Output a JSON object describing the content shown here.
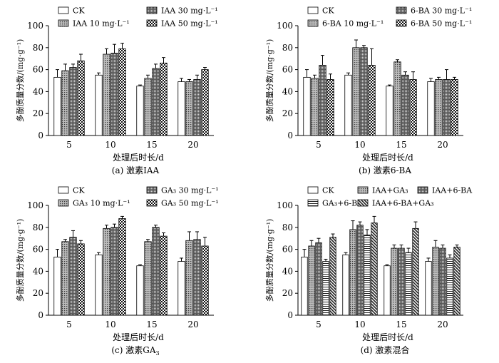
{
  "chart_data": [
    {
      "type": "bar",
      "caption": "(a) 激素IAA",
      "xlabel": "处理后时长/d",
      "ylabel": "多酚质量分数/(mg·g⁻¹)",
      "ylim": [
        0,
        100
      ],
      "yticks": [
        "0",
        "20",
        "40",
        "60",
        "80",
        "100"
      ],
      "categories": [
        "5",
        "10",
        "15",
        "20"
      ],
      "legend_position": "top",
      "series": [
        {
          "name": "CK",
          "pattern": "white",
          "values": [
            53,
            55,
            45,
            49
          ],
          "errors": [
            7,
            2,
            1,
            3
          ]
        },
        {
          "name": "IAA 10 mg·L⁻¹",
          "pattern": "dots",
          "values": [
            59,
            74,
            52,
            49
          ],
          "errors": [
            6,
            5,
            3,
            2
          ]
        },
        {
          "name": "IAA 30 mg·L⁻¹",
          "pattern": "dense",
          "values": [
            62,
            75,
            61,
            51
          ],
          "errors": [
            3,
            8,
            4,
            4
          ]
        },
        {
          "name": "IAA 50 mg·L⁻¹",
          "pattern": "checker",
          "values": [
            68,
            79,
            66,
            60
          ],
          "errors": [
            6,
            5,
            5,
            2
          ]
        }
      ]
    },
    {
      "type": "bar",
      "caption": "(b) 激素6-BA",
      "xlabel": "处理后时长/d",
      "ylabel": "多酚质量分数/(mg·g⁻¹)",
      "ylim": [
        0,
        100
      ],
      "yticks": [
        "0",
        "20",
        "40",
        "60",
        "80",
        "100"
      ],
      "categories": [
        "5",
        "10",
        "15",
        "20"
      ],
      "legend_position": "top",
      "series": [
        {
          "name": "CK",
          "pattern": "white",
          "values": [
            53,
            55,
            45,
            49
          ],
          "errors": [
            7,
            2,
            1,
            3
          ]
        },
        {
          "name": "6-BA 10 mg·L⁻¹",
          "pattern": "dots",
          "values": [
            52,
            80,
            67,
            51
          ],
          "errors": [
            3,
            7,
            2,
            2
          ]
        },
        {
          "name": "6-BA 30 mg·L⁻¹",
          "pattern": "dense",
          "values": [
            64,
            80,
            55,
            51
          ],
          "errors": [
            9,
            2,
            3,
            9
          ]
        },
        {
          "name": "6-BA 50 mg·L⁻¹",
          "pattern": "checker",
          "values": [
            51,
            64,
            51,
            51
          ],
          "errors": [
            5,
            15,
            7,
            2
          ]
        }
      ]
    },
    {
      "type": "bar",
      "caption": "(c) 激素GA",
      "caption_sub": "3",
      "xlabel": "处理后时长/d",
      "ylabel": "多酚质量分数/(mg·g⁻¹)",
      "ylim": [
        0,
        100
      ],
      "yticks": [
        "0",
        "20",
        "40",
        "60",
        "80",
        "100"
      ],
      "categories": [
        "5",
        "10",
        "15",
        "20"
      ],
      "legend_position": "top",
      "series": [
        {
          "name": "CK",
          "pattern": "white",
          "values": [
            53,
            55,
            45,
            49
          ],
          "errors": [
            7,
            2,
            1,
            3
          ]
        },
        {
          "name": "GA₃ 10 mg·L⁻¹",
          "pattern": "dots",
          "values": [
            67,
            79,
            67,
            68
          ],
          "errors": [
            2,
            3,
            2,
            8
          ]
        },
        {
          "name": "GA₃ 30 mg·L⁻¹",
          "pattern": "dense",
          "values": [
            71,
            80,
            80,
            69
          ],
          "errors": [
            6,
            3,
            2,
            7
          ]
        },
        {
          "name": "GA₃ 50 mg·L⁻¹",
          "pattern": "checker",
          "values": [
            65,
            88,
            72,
            63
          ],
          "errors": [
            3,
            2,
            3,
            8
          ]
        }
      ]
    },
    {
      "type": "bar",
      "caption": "(d) 激素混合",
      "xlabel": "处理后时长/d",
      "ylabel": "多酚质量分数/(mg·g⁻¹)",
      "ylim": [
        0,
        100
      ],
      "yticks": [
        "0",
        "20",
        "40",
        "60",
        "80",
        "100"
      ],
      "categories": [
        "5",
        "10",
        "15",
        "20"
      ],
      "legend_position": "top",
      "series": [
        {
          "name": "CK",
          "pattern": "white",
          "values": [
            53,
            55,
            45,
            49
          ],
          "errors": [
            7,
            2,
            1,
            3
          ]
        },
        {
          "name": "IAA+GA₃",
          "pattern": "dots",
          "values": [
            63,
            78,
            61,
            62
          ],
          "errors": [
            5,
            8,
            3,
            6
          ]
        },
        {
          "name": "IAA+6-BA",
          "pattern": "dense",
          "values": [
            66,
            82,
            61,
            61
          ],
          "errors": [
            4,
            3,
            3,
            3
          ]
        },
        {
          "name": "GA₃+6-BA",
          "pattern": "hlines",
          "values": [
            49,
            73,
            57,
            52
          ],
          "errors": [
            2,
            5,
            4,
            3
          ]
        },
        {
          "name": "IAA+6-BA+GA₃",
          "pattern": "diag",
          "values": [
            71,
            84,
            79,
            62
          ],
          "errors": [
            3,
            6,
            6,
            2
          ]
        }
      ]
    }
  ]
}
